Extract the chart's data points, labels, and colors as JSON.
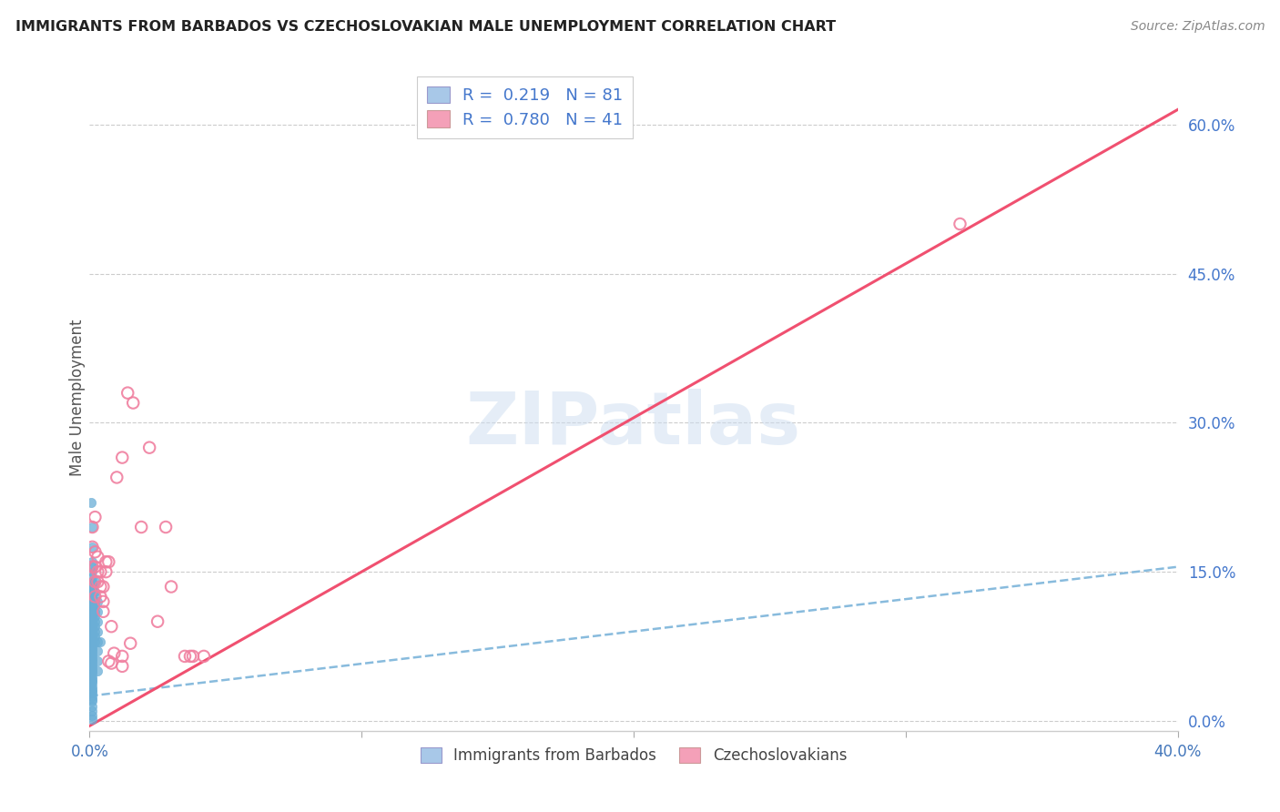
{
  "title": "IMMIGRANTS FROM BARBADOS VS CZECHOSLOVAKIAN MALE UNEMPLOYMENT CORRELATION CHART",
  "source": "Source: ZipAtlas.com",
  "ylabel": "Male Unemployment",
  "watermark": "ZIPatlas",
  "legend": {
    "series1_label": "Immigrants from Barbados",
    "series1_color": "#a8c8e8",
    "series1_R": "0.219",
    "series1_N": "81",
    "series2_label": "Czechoslovakians",
    "series2_color": "#f4a0b8",
    "series2_R": "0.780",
    "series2_N": "41"
  },
  "right_yticks": [
    0.0,
    0.15,
    0.3,
    0.45,
    0.6
  ],
  "right_ytick_labels": [
    "0.0%",
    "15.0%",
    "30.0%",
    "45.0%",
    "60.0%"
  ],
  "xlim": [
    0.0,
    0.4
  ],
  "ylim": [
    -0.01,
    0.66
  ],
  "blue_scatter_color": "#6aaed6",
  "pink_scatter_color": "#f080a0",
  "blue_line_color": "#88bbdd",
  "pink_line_color": "#f05070",
  "barbados_points": [
    [
      0.0005,
      0.22
    ],
    [
      0.001,
      0.195
    ],
    [
      0.001,
      0.175
    ],
    [
      0.001,
      0.16
    ],
    [
      0.001,
      0.155
    ],
    [
      0.001,
      0.15
    ],
    [
      0.001,
      0.145
    ],
    [
      0.001,
      0.14
    ],
    [
      0.001,
      0.138
    ],
    [
      0.001,
      0.135
    ],
    [
      0.001,
      0.132
    ],
    [
      0.001,
      0.13
    ],
    [
      0.001,
      0.128
    ],
    [
      0.001,
      0.125
    ],
    [
      0.001,
      0.122
    ],
    [
      0.001,
      0.12
    ],
    [
      0.001,
      0.118
    ],
    [
      0.001,
      0.115
    ],
    [
      0.001,
      0.112
    ],
    [
      0.001,
      0.11
    ],
    [
      0.001,
      0.108
    ],
    [
      0.001,
      0.105
    ],
    [
      0.001,
      0.102
    ],
    [
      0.001,
      0.1
    ],
    [
      0.001,
      0.098
    ],
    [
      0.001,
      0.095
    ],
    [
      0.001,
      0.092
    ],
    [
      0.001,
      0.09
    ],
    [
      0.001,
      0.088
    ],
    [
      0.001,
      0.085
    ],
    [
      0.001,
      0.082
    ],
    [
      0.001,
      0.08
    ],
    [
      0.001,
      0.078
    ],
    [
      0.001,
      0.075
    ],
    [
      0.001,
      0.072
    ],
    [
      0.001,
      0.07
    ],
    [
      0.001,
      0.068
    ],
    [
      0.001,
      0.065
    ],
    [
      0.001,
      0.062
    ],
    [
      0.001,
      0.06
    ],
    [
      0.001,
      0.058
    ],
    [
      0.001,
      0.055
    ],
    [
      0.001,
      0.052
    ],
    [
      0.001,
      0.05
    ],
    [
      0.001,
      0.048
    ],
    [
      0.001,
      0.045
    ],
    [
      0.001,
      0.042
    ],
    [
      0.001,
      0.04
    ],
    [
      0.001,
      0.038
    ],
    [
      0.001,
      0.035
    ],
    [
      0.001,
      0.032
    ],
    [
      0.001,
      0.03
    ],
    [
      0.001,
      0.028
    ],
    [
      0.001,
      0.025
    ],
    [
      0.001,
      0.022
    ],
    [
      0.001,
      0.02
    ],
    [
      0.001,
      0.015
    ],
    [
      0.001,
      0.01
    ],
    [
      0.001,
      0.005
    ],
    [
      0.001,
      0.002
    ],
    [
      0.002,
      0.14
    ],
    [
      0.002,
      0.13
    ],
    [
      0.002,
      0.125
    ],
    [
      0.002,
      0.12
    ],
    [
      0.002,
      0.115
    ],
    [
      0.002,
      0.11
    ],
    [
      0.002,
      0.105
    ],
    [
      0.002,
      0.1
    ],
    [
      0.002,
      0.095
    ],
    [
      0.002,
      0.09
    ],
    [
      0.002,
      0.085
    ],
    [
      0.002,
      0.08
    ],
    [
      0.003,
      0.12
    ],
    [
      0.003,
      0.11
    ],
    [
      0.003,
      0.1
    ],
    [
      0.003,
      0.09
    ],
    [
      0.003,
      0.08
    ],
    [
      0.003,
      0.07
    ],
    [
      0.003,
      0.06
    ],
    [
      0.003,
      0.05
    ],
    [
      0.004,
      0.08
    ]
  ],
  "czech_points": [
    [
      0.001,
      0.195
    ],
    [
      0.001,
      0.175
    ],
    [
      0.001,
      0.155
    ],
    [
      0.002,
      0.205
    ],
    [
      0.002,
      0.17
    ],
    [
      0.002,
      0.155
    ],
    [
      0.002,
      0.14
    ],
    [
      0.002,
      0.125
    ],
    [
      0.003,
      0.165
    ],
    [
      0.003,
      0.15
    ],
    [
      0.003,
      0.14
    ],
    [
      0.004,
      0.15
    ],
    [
      0.004,
      0.135
    ],
    [
      0.004,
      0.125
    ],
    [
      0.005,
      0.135
    ],
    [
      0.005,
      0.12
    ],
    [
      0.005,
      0.11
    ],
    [
      0.006,
      0.16
    ],
    [
      0.006,
      0.15
    ],
    [
      0.007,
      0.16
    ],
    [
      0.007,
      0.06
    ],
    [
      0.008,
      0.095
    ],
    [
      0.008,
      0.058
    ],
    [
      0.009,
      0.068
    ],
    [
      0.01,
      0.245
    ],
    [
      0.012,
      0.265
    ],
    [
      0.012,
      0.065
    ],
    [
      0.012,
      0.055
    ],
    [
      0.014,
      0.33
    ],
    [
      0.015,
      0.078
    ],
    [
      0.016,
      0.32
    ],
    [
      0.019,
      0.195
    ],
    [
      0.022,
      0.275
    ],
    [
      0.025,
      0.1
    ],
    [
      0.028,
      0.195
    ],
    [
      0.03,
      0.135
    ],
    [
      0.035,
      0.065
    ],
    [
      0.037,
      0.065
    ],
    [
      0.038,
      0.065
    ],
    [
      0.042,
      0.065
    ],
    [
      0.32,
      0.5
    ]
  ],
  "blue_line_endpoints": [
    [
      0.0,
      0.025
    ],
    [
      0.4,
      0.155
    ]
  ],
  "pink_line_endpoints": [
    [
      0.0,
      -0.005
    ],
    [
      0.4,
      0.615
    ]
  ]
}
